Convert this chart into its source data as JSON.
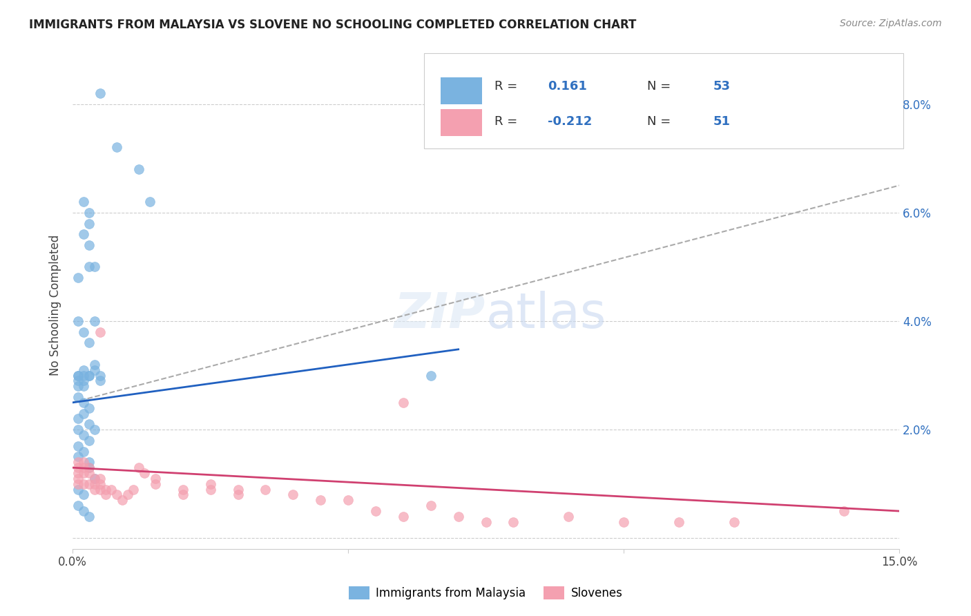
{
  "title": "IMMIGRANTS FROM MALAYSIA VS SLOVENE NO SCHOOLING COMPLETED CORRELATION CHART",
  "source": "Source: ZipAtlas.com",
  "ylabel": "No Schooling Completed",
  "xmin": 0.0,
  "xmax": 0.15,
  "ymin": -0.002,
  "ymax": 0.088,
  "yticks": [
    0.0,
    0.02,
    0.04,
    0.06,
    0.08
  ],
  "ytick_labels": [
    "",
    "2.0%",
    "4.0%",
    "6.0%",
    "8.0%"
  ],
  "xticks": [
    0.0,
    0.05,
    0.1,
    0.15
  ],
  "xtick_labels": [
    "0.0%",
    "",
    "",
    "15.0%"
  ],
  "blue_color": "#7ab3e0",
  "pink_color": "#f4a0b0",
  "trend_blue": "#2060c0",
  "trend_pink": "#d04070",
  "trend_gray": "#aaaaaa",
  "blue_label_color": "#3070c0",
  "blue_scatter_x": [
    0.005,
    0.008,
    0.012,
    0.014,
    0.003,
    0.004,
    0.002,
    0.003,
    0.002,
    0.003,
    0.001,
    0.003,
    0.001,
    0.002,
    0.003,
    0.004,
    0.001,
    0.002,
    0.003,
    0.004,
    0.005,
    0.001,
    0.002,
    0.001,
    0.002,
    0.003,
    0.004,
    0.005,
    0.001,
    0.002,
    0.003,
    0.001,
    0.002,
    0.003,
    0.001,
    0.002,
    0.003,
    0.004,
    0.001,
    0.002,
    0.001,
    0.003,
    0.065,
    0.003,
    0.004,
    0.001,
    0.002,
    0.001,
    0.002,
    0.003,
    0.002,
    0.001
  ],
  "blue_scatter_y": [
    0.082,
    0.072,
    0.068,
    0.062,
    0.054,
    0.05,
    0.062,
    0.06,
    0.056,
    0.058,
    0.048,
    0.05,
    0.04,
    0.038,
    0.036,
    0.04,
    0.03,
    0.031,
    0.03,
    0.032,
    0.03,
    0.029,
    0.028,
    0.028,
    0.029,
    0.03,
    0.031,
    0.029,
    0.026,
    0.025,
    0.024,
    0.022,
    0.023,
    0.021,
    0.02,
    0.019,
    0.018,
    0.02,
    0.017,
    0.016,
    0.015,
    0.014,
    0.03,
    0.013,
    0.011,
    0.009,
    0.008,
    0.006,
    0.005,
    0.004,
    0.03,
    0.03
  ],
  "pink_scatter_x": [
    0.001,
    0.001,
    0.001,
    0.001,
    0.001,
    0.002,
    0.002,
    0.002,
    0.002,
    0.003,
    0.003,
    0.003,
    0.004,
    0.004,
    0.004,
    0.005,
    0.005,
    0.005,
    0.006,
    0.006,
    0.007,
    0.008,
    0.009,
    0.01,
    0.011,
    0.012,
    0.013,
    0.015,
    0.015,
    0.02,
    0.02,
    0.025,
    0.025,
    0.03,
    0.03,
    0.035,
    0.04,
    0.045,
    0.05,
    0.055,
    0.06,
    0.065,
    0.07,
    0.075,
    0.08,
    0.09,
    0.1,
    0.11,
    0.12,
    0.14,
    0.005,
    0.06
  ],
  "pink_scatter_y": [
    0.014,
    0.013,
    0.012,
    0.011,
    0.01,
    0.014,
    0.013,
    0.012,
    0.01,
    0.013,
    0.012,
    0.01,
    0.011,
    0.01,
    0.009,
    0.011,
    0.01,
    0.009,
    0.009,
    0.008,
    0.009,
    0.008,
    0.007,
    0.008,
    0.009,
    0.013,
    0.012,
    0.011,
    0.01,
    0.009,
    0.008,
    0.01,
    0.009,
    0.009,
    0.008,
    0.009,
    0.008,
    0.007,
    0.007,
    0.005,
    0.004,
    0.006,
    0.004,
    0.003,
    0.003,
    0.004,
    0.003,
    0.003,
    0.003,
    0.005,
    0.038,
    0.025
  ],
  "blue_trend_x0": 0.0,
  "blue_trend_y0": 0.025,
  "blue_trend_x1": 0.15,
  "blue_trend_y1": 0.046,
  "gray_trend_x0": 0.0,
  "gray_trend_y0": 0.025,
  "gray_trend_x1": 0.15,
  "gray_trend_y1": 0.065,
  "pink_trend_x0": 0.0,
  "pink_trend_y0": 0.013,
  "pink_trend_x1": 0.15,
  "pink_trend_y1": 0.005
}
